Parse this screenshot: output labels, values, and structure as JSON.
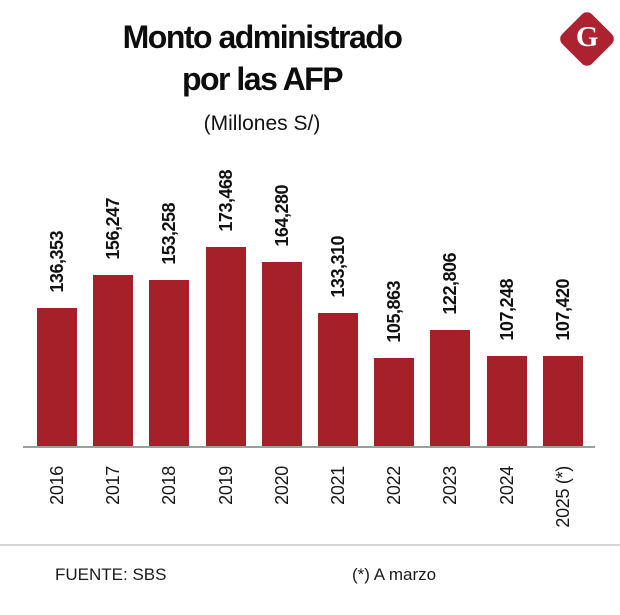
{
  "header": {
    "title_line1": "Monto administrado",
    "title_line2": "por las AFP",
    "subtitle": "(Millones S/)",
    "logo_letter": "G"
  },
  "chart_data": {
    "type": "bar",
    "title": "Monto administrado por las AFP",
    "subtitle": "(Millones S/)",
    "categories": [
      "2016",
      "2017",
      "2018",
      "2019",
      "2020",
      "2021",
      "2022",
      "2023",
      "2024",
      "2025 (*)"
    ],
    "values": [
      136353,
      156247,
      153258,
      173468,
      164280,
      133310,
      105863,
      122806,
      107248,
      107420
    ],
    "value_labels": [
      "136,353",
      "156,247",
      "153,258",
      "173,468",
      "164,280",
      "133,310",
      "105,863",
      "122,806",
      "107,248",
      "107,420"
    ],
    "xlabel": "",
    "ylabel": "",
    "ylim": [
      52700,
      173468
    ],
    "grid": false,
    "legend": "none",
    "value_label_rotation": 90,
    "tick_label_rotation": 90
  },
  "colors": {
    "bar": "#A52028",
    "logo": "#AD2230",
    "axis_line": "#9e9e9e",
    "text": "#111111"
  },
  "footer": {
    "source": "FUENTE: SBS",
    "note": "(*) A marzo"
  }
}
